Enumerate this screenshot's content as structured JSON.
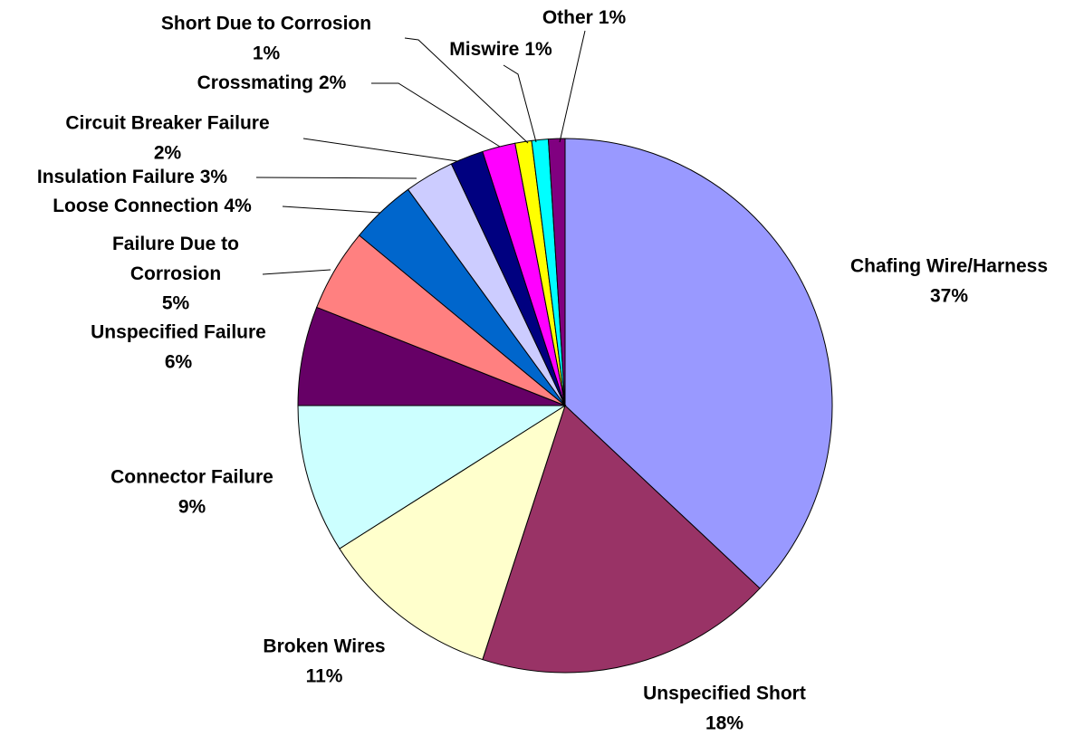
{
  "chart_data": {
    "type": "pie",
    "categories": [
      "Chafing Wire/Harness",
      "Unspecified Short",
      "Broken Wires",
      "Connector Failure",
      "Unspecified Failure",
      "Failure Due to Corrosion",
      "Loose Connection",
      "Insulation Failure",
      "Circuit Breaker Failure",
      "Crossmating",
      "Short Due to Corrosion",
      "Miswire",
      "Other"
    ],
    "values": [
      37,
      18,
      11,
      9,
      6,
      5,
      4,
      3,
      2,
      2,
      1,
      1,
      1
    ],
    "value_labels": [
      "37%",
      "18%",
      "11%",
      "9%",
      "6%",
      "5%",
      "4%",
      "3%",
      "2%",
      "2%",
      "1%",
      "1%",
      "1%"
    ],
    "colors": [
      "#9999ff",
      "#993366",
      "#ffffcc",
      "#ccffff",
      "#660066",
      "#ff8080",
      "#0066cc",
      "#ccccff",
      "#000080",
      "#ff00ff",
      "#ffff00",
      "#00ffff",
      "#800080"
    ]
  }
}
